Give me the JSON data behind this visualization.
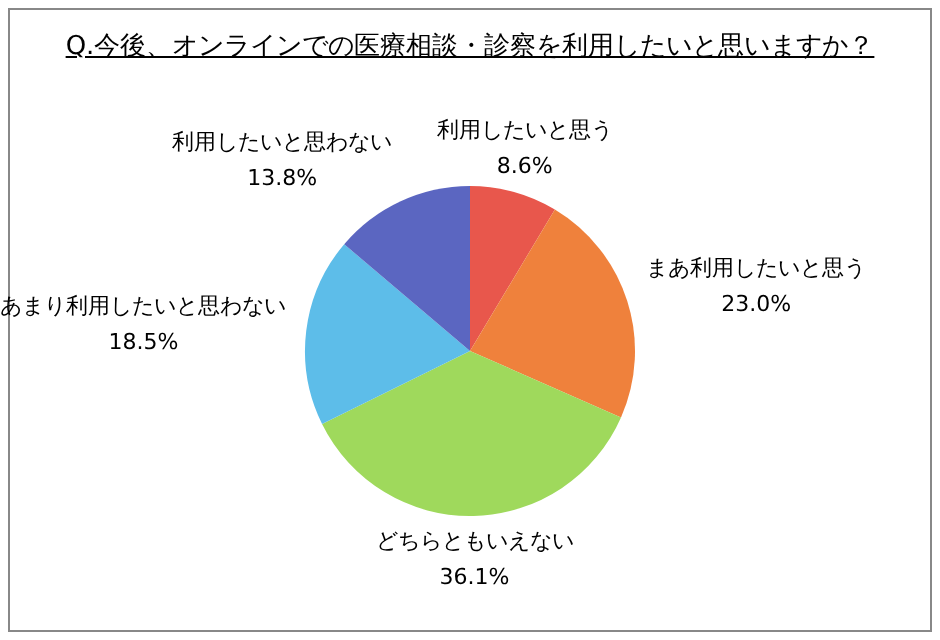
{
  "chart_data": {
    "type": "pie",
    "title": "Q.今後、オンラインでの医療相談・診察を利用したいと思いますか？",
    "categories": [
      "利用したいと思う",
      "まあ利用したいと思う",
      "どちらともいえない",
      "あまり利用したいと思わない",
      "利用したいと思わない"
    ],
    "values": [
      8.6,
      23.0,
      36.1,
      18.5,
      13.8
    ],
    "value_labels": [
      "8.6%",
      "23.0%",
      "36.1%",
      "18.5%",
      "13.8%"
    ],
    "colors": [
      "#e8574c",
      "#ef813c",
      "#9fd95c",
      "#5dbde9",
      "#5b66c1"
    ],
    "legend": false
  }
}
